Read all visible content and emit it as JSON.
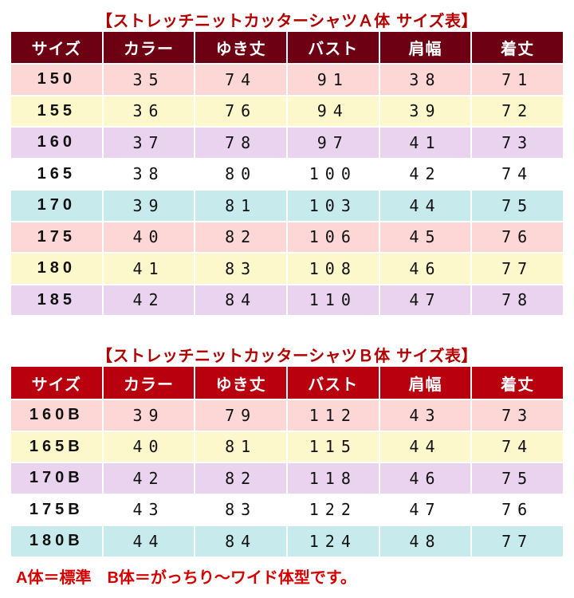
{
  "tableA": {
    "title": "【ストレッチニットカッターシャツＡ体 サイズ表】",
    "headers": [
      "サイズ",
      "カラー",
      "ゆき丈",
      "バスト",
      "肩幅",
      "着丈"
    ],
    "rows": [
      [
        "150",
        "35",
        "74",
        "91",
        "38",
        "71"
      ],
      [
        "155",
        "36",
        "76",
        "94",
        "39",
        "72"
      ],
      [
        "160",
        "37",
        "78",
        "97",
        "41",
        "73"
      ],
      [
        "165",
        "38",
        "80",
        "100",
        "42",
        "74"
      ],
      [
        "170",
        "39",
        "81",
        "103",
        "44",
        "75"
      ],
      [
        "175",
        "40",
        "82",
        "106",
        "45",
        "76"
      ],
      [
        "180",
        "41",
        "83",
        "108",
        "46",
        "77"
      ],
      [
        "185",
        "42",
        "84",
        "110",
        "47",
        "78"
      ]
    ],
    "row_colors": [
      "#fdd6d6",
      "#fdf8cc",
      "#ead3ef",
      "#ffffff",
      "#c7ebec",
      "#fdd6d6",
      "#fdf8cc",
      "#ead3ef"
    ],
    "header_color": "#6e0014"
  },
  "tableB": {
    "title": "【ストレッチニットカッターシャツＢ体 サイズ表】",
    "headers": [
      "サイズ",
      "カラー",
      "ゆき丈",
      "バスト",
      "肩幅",
      "着丈"
    ],
    "rows": [
      [
        "160B",
        "39",
        "79",
        "112",
        "43",
        "73"
      ],
      [
        "165B",
        "40",
        "81",
        "115",
        "44",
        "74"
      ],
      [
        "170B",
        "42",
        "82",
        "118",
        "46",
        "75"
      ],
      [
        "175B",
        "43",
        "83",
        "122",
        "47",
        "76"
      ],
      [
        "180B",
        "44",
        "84",
        "124",
        "48",
        "77"
      ]
    ],
    "row_colors": [
      "#fdd6d6",
      "#fdf8cc",
      "#ead3ef",
      "#ffffff",
      "#c7ebec"
    ],
    "header_color": "#b8000f"
  },
  "note": "A体＝標準　B体＝がっちり～ワイド体型です。",
  "title_color": "#b20000",
  "note_color": "#d40000"
}
